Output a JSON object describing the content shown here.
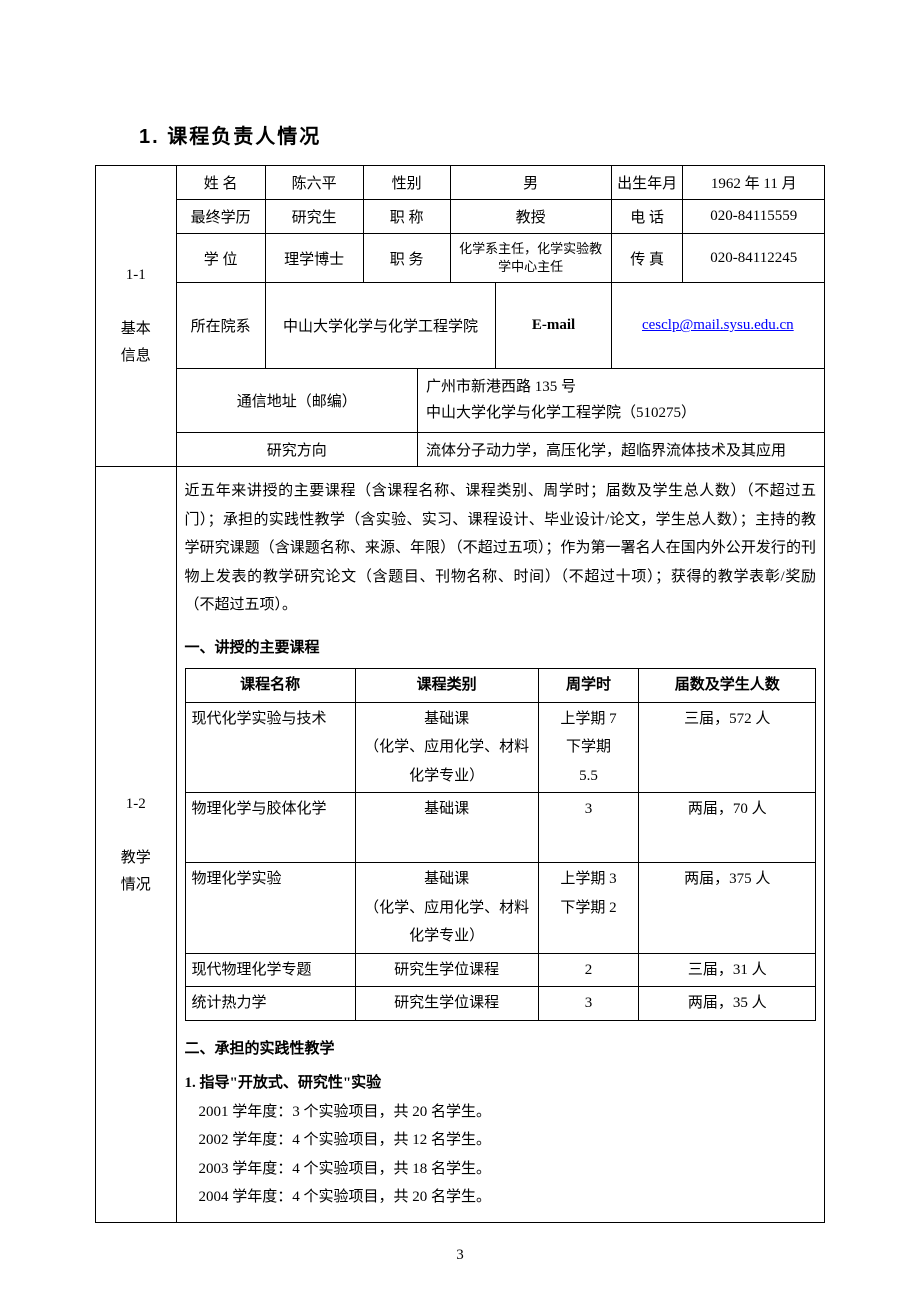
{
  "section_title": "1.   课程负责人情况",
  "side1": {
    "code": "1-1",
    "l1": "基本",
    "l2": "信息"
  },
  "side2": {
    "code": "1-2",
    "l1": "教学",
    "l2": "情况"
  },
  "basic": {
    "name_label": "姓 名",
    "name": "陈六平",
    "gender_label": "性别",
    "gender": "男",
    "dob_label": "出生年月",
    "dob": "1962 年 11 月",
    "edu_label": "最终学历",
    "edu": "研究生",
    "title_label": "职    称",
    "title": "教授",
    "phone_label": "电 话",
    "phone": "020-84115559",
    "degree_label": "学    位",
    "degree": "理学博士",
    "position_label": "职    务",
    "position": "化学系主任，化学实验教学中心主任",
    "fax_label": "传 真",
    "fax": "020-84112245",
    "dept_label": "所在院系",
    "dept": "中山大学化学与化学工程学院",
    "email_label": "E-mail",
    "email": "cesclp@mail.sysu.edu.cn",
    "addr_label": "通信地址（邮编）",
    "addr_l1": "广州市新港西路 135 号",
    "addr_l2": "中山大学化学与化学工程学院（510275）",
    "research_label": "研究方向",
    "research": "流体分子动力学，高压化学，超临界流体技术及其应用"
  },
  "teaching": {
    "intro": "近五年来讲授的主要课程（含课程名称、课程类别、周学时；届数及学生总人数）（不超过五门）；承担的实践性教学（含实验、实习、课程设计、毕业设计/论文，学生总人数）；主持的教学研究课题（含课题名称、来源、年限）（不超过五项）；作为第一署名人在国内外公开发行的刊物上发表的教学研究论文（含题目、刊物名称、时间）（不超过十项）；获得的教学表彰/奖励（不超过五项）。",
    "heading1": "一、讲授的主要课程",
    "th1": "课程名称",
    "th2": "课程类别",
    "th3": "周学时",
    "th4": "届数及学生人数",
    "rows": [
      {
        "c1": "现代化学实验与技术",
        "c2": "基础课\n（化学、应用化学、材料化学专业）",
        "c3": "上学期 7\n下学期\n5.5",
        "c4": "三届，572 人"
      },
      {
        "c1": "物理化学与胶体化学",
        "c2": "基础课",
        "c3": "3",
        "c4": "两届，70 人",
        "tall": true
      },
      {
        "c1": "物理化学实验",
        "c2": "基础课\n（化学、应用化学、材料化学专业）",
        "c3": "上学期 3\n下学期 2",
        "c4": "两届，375 人"
      },
      {
        "c1": "现代物理化学专题",
        "c2": "研究生学位课程",
        "c3": "2",
        "c4": "三届，31 人"
      },
      {
        "c1": "统计热力学",
        "c2": "研究生学位课程",
        "c3": "3",
        "c4": "两届，35 人"
      }
    ],
    "heading2": "二、承担的实践性教学",
    "practice_sub": "1.  指导\"开放式、研究性\"实验",
    "practice_items": [
      "2001 学年度：3 个实验项目，共 20 名学生。",
      "2002 学年度：4 个实验项目，共 12 名学生。",
      "2003 学年度：4 个实验项目，共 18 名学生。",
      "2004 学年度：4 个实验项目，共 20 名学生。"
    ]
  },
  "page_number": "3"
}
